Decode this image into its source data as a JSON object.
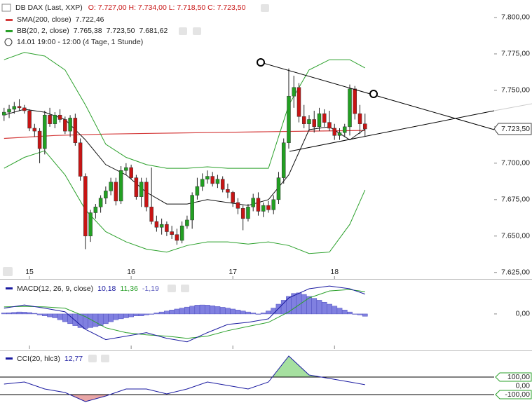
{
  "chart_data": [
    {
      "type": "candlestick",
      "title": "DB DAX (Last, XXP)",
      "ohlc_label": "O: 7.727,00  H: 7.734,00  L: 7.718,50  C: 7.723,50",
      "period": "14.01 19:00 - 12:00 (4 Tage, 1 Stunde)",
      "xlim": [
        -0.8,
        96.4
      ],
      "ylim": [
        7622,
        7812
      ],
      "xticks": [
        {
          "value": 5,
          "label": "15"
        },
        {
          "value": 25,
          "label": "16"
        },
        {
          "value": 45,
          "label": "17"
        },
        {
          "value": 65,
          "label": "18"
        }
      ],
      "yticks": [
        {
          "value": 7625,
          "label": "7.625,00"
        },
        {
          "value": 7650,
          "label": "7.650,00"
        },
        {
          "value": 7675,
          "label": "7.675,00"
        },
        {
          "value": 7700,
          "label": "7.700,00"
        },
        {
          "value": 7725,
          "label": "7.725,00"
        },
        {
          "value": 7750,
          "label": "7.750,00"
        },
        {
          "value": 7775,
          "label": "7.775,00"
        },
        {
          "value": 7800,
          "label": "7.800,00"
        }
      ],
      "up_color": "#22a022",
      "down_color": "#c81414",
      "x": [
        0,
        1,
        2,
        3,
        4,
        5,
        6,
        7,
        8,
        9,
        10,
        11,
        12,
        13,
        14,
        15,
        16,
        17,
        18,
        19,
        20,
        21,
        22,
        23,
        24,
        25,
        26,
        27,
        28,
        29,
        30,
        31,
        32,
        33,
        34,
        35,
        36,
        37,
        38,
        39,
        40,
        41,
        42,
        43,
        44,
        45,
        46,
        47,
        48,
        49,
        50,
        51,
        52,
        53,
        54,
        55,
        56,
        57,
        58,
        59,
        60,
        61,
        62,
        63,
        64,
        65,
        66,
        67,
        68,
        69,
        70,
        71
      ],
      "ohlc": [
        [
          7733,
          7738,
          7729,
          7735
        ],
        [
          7735,
          7740,
          7731,
          7737
        ],
        [
          7737,
          7742,
          7734,
          7739
        ],
        [
          7739,
          7744,
          7736,
          7738
        ],
        [
          7738,
          7740,
          7734,
          7736
        ],
        [
          7736,
          7737,
          7722,
          7724
        ],
        [
          7724,
          7727,
          7718,
          7722
        ],
        [
          7722,
          7724,
          7700,
          7710
        ],
        [
          7710,
          7736,
          7706,
          7733
        ],
        [
          7733,
          7738,
          7725,
          7727
        ],
        [
          7727,
          7735,
          7724,
          7733
        ],
        [
          7733,
          7737,
          7728,
          7730
        ],
        [
          7730,
          7732,
          7720,
          7722
        ],
        [
          7722,
          7733,
          7718,
          7731
        ],
        [
          7731,
          7734,
          7712,
          7714
        ],
        [
          7714,
          7717,
          7688,
          7691
        ],
        [
          7691,
          7693,
          7641,
          7650
        ],
        [
          7650,
          7668,
          7646,
          7666
        ],
        [
          7666,
          7672,
          7662,
          7670
        ],
        [
          7670,
          7678,
          7666,
          7676
        ],
        [
          7676,
          7684,
          7672,
          7681
        ],
        [
          7681,
          7690,
          7678,
          7687
        ],
        [
          7687,
          7690,
          7671,
          7674
        ],
        [
          7674,
          7698,
          7672,
          7695
        ],
        [
          7695,
          7700,
          7692,
          7697
        ],
        [
          7697,
          7699,
          7689,
          7690
        ],
        [
          7690,
          7692,
          7675,
          7677
        ],
        [
          7677,
          7690,
          7670,
          7687
        ],
        [
          7687,
          7690,
          7667,
          7670
        ],
        [
          7670,
          7697,
          7658,
          7660
        ],
        [
          7660,
          7664,
          7653,
          7656
        ],
        [
          7656,
          7662,
          7651,
          7658
        ],
        [
          7658,
          7660,
          7650,
          7653
        ],
        [
          7653,
          7657,
          7648,
          7651
        ],
        [
          7651,
          7655,
          7644,
          7647
        ],
        [
          7647,
          7660,
          7645,
          7657
        ],
        [
          7657,
          7664,
          7655,
          7661
        ],
        [
          7661,
          7680,
          7655,
          7678
        ],
        [
          7678,
          7690,
          7675,
          7684
        ],
        [
          7684,
          7693,
          7681,
          7689
        ],
        [
          7689,
          7695,
          7686,
          7691
        ],
        [
          7691,
          7694,
          7684,
          7686
        ],
        [
          7686,
          7692,
          7683,
          7689
        ],
        [
          7689,
          7691,
          7680,
          7682
        ],
        [
          7682,
          7686,
          7676,
          7680
        ],
        [
          7680,
          7681,
          7670,
          7673
        ],
        [
          7673,
          7676,
          7665,
          7669
        ],
        [
          7669,
          7671,
          7654,
          7662
        ],
        [
          7662,
          7672,
          7660,
          7670
        ],
        [
          7670,
          7679,
          7667,
          7676
        ],
        [
          7676,
          7680,
          7664,
          7667
        ],
        [
          7667,
          7673,
          7663,
          7671
        ],
        [
          7671,
          7674,
          7666,
          7668
        ],
        [
          7668,
          7678,
          7665,
          7675
        ],
        [
          7675,
          7694,
          7672,
          7690
        ],
        [
          7690,
          7717,
          7686,
          7714
        ],
        [
          7714,
          7765,
          7710,
          7746
        ],
        [
          7746,
          7760,
          7738,
          7752
        ],
        [
          7752,
          7755,
          7728,
          7732
        ],
        [
          7732,
          7740,
          7724,
          7727
        ],
        [
          7727,
          7733,
          7722,
          7730
        ],
        [
          7730,
          7736,
          7721,
          7725
        ],
        [
          7725,
          7738,
          7722,
          7734
        ],
        [
          7734,
          7737,
          7725,
          7728
        ],
        [
          7728,
          7736,
          7722,
          7724
        ],
        [
          7724,
          7727,
          7716,
          7719
        ],
        [
          7719,
          7724,
          7716,
          7721
        ],
        [
          7721,
          7727,
          7718,
          7725
        ],
        [
          7725,
          7754,
          7719,
          7751
        ],
        [
          7751,
          7753,
          7730,
          7734
        ],
        [
          7734,
          7740,
          7720,
          7727
        ],
        [
          7727,
          7734,
          7718.5,
          7723.5
        ]
      ],
      "last_price": {
        "value": 7723.5,
        "label": "7.723,50"
      },
      "sma": {
        "name": "SMA(200, close)",
        "value_label": "7.722,46",
        "color": "#d43a3a",
        "x": [
          0,
          10,
          20,
          30,
          40,
          50,
          60,
          71
        ],
        "values": [
          7717,
          7719,
          7720,
          7720.5,
          7721,
          7721.5,
          7722,
          7722.46
        ]
      },
      "bb": {
        "name": "BB(20, 2, close)",
        "value_labels": [
          "7.765,38",
          "7.723,50",
          "7.681,62"
        ],
        "color": "#2aa02a",
        "middle_color": "#111111",
        "x": [
          0,
          4,
          8,
          12,
          16,
          20,
          24,
          28,
          32,
          36,
          40,
          44,
          48,
          52,
          56,
          60,
          64,
          68,
          71
        ],
        "upper": [
          7771,
          7776,
          7773.5,
          7764,
          7740,
          7713,
          7704,
          7699,
          7696.5,
          7696.5,
          7697.5,
          7696.5,
          7696.5,
          7696.5,
          7740,
          7764,
          7771,
          7771,
          7765.38
        ],
        "middle": [
          7733,
          7737,
          7735,
          7730,
          7716,
          7699,
          7692,
          7680,
          7672,
          7672,
          7675,
          7673,
          7671,
          7675,
          7692,
          7723,
          7725,
          7716,
          7723.5
        ],
        "lower": [
          7696.5,
          7704,
          7708.5,
          7692,
          7668,
          7653,
          7646,
          7641,
          7639,
          7643.5,
          7646,
          7646,
          7644.5,
          7646,
          7643.5,
          7638,
          7639,
          7658,
          7681.62
        ]
      }
    },
    {
      "type": "macd",
      "title": "MACD(12, 26, 9, close)",
      "value_labels": [
        "10,18",
        "11,36",
        "-1,19"
      ],
      "ylim": [
        -18,
        16.5
      ],
      "yticks": [
        {
          "value": 0,
          "label": "0,00"
        }
      ],
      "macd": {
        "color": "#1a1aa0",
        "x": [
          0,
          4,
          8,
          12,
          16,
          20,
          24,
          28,
          32,
          36,
          40,
          44,
          48,
          52,
          56,
          60,
          64,
          68,
          71
        ],
        "values": [
          2.9,
          4.6,
          2.9,
          1.1,
          -7.9,
          -13.2,
          -11.4,
          -9.6,
          -12.5,
          -14.3,
          -9.6,
          -5.4,
          -4.3,
          -2.5,
          8.2,
          12.9,
          14.3,
          12.9,
          10.18
        ]
      },
      "signal": {
        "color": "#2aa02a",
        "x": [
          0,
          4,
          8,
          12,
          16,
          20,
          24,
          28,
          32,
          36,
          40,
          44,
          48,
          52,
          56,
          60,
          64,
          68,
          71
        ],
        "values": [
          3.6,
          3.9,
          3.6,
          2.9,
          -1.4,
          -7.1,
          -9.6,
          -10.7,
          -11.4,
          -12.5,
          -11.4,
          -8.6,
          -6.4,
          -4.3,
          1.1,
          8.2,
          11.8,
          12.5,
          11.36
        ]
      },
      "histogram": {
        "color": "#8080e0",
        "x": [
          0,
          1,
          2,
          3,
          4,
          5,
          6,
          7,
          8,
          9,
          10,
          11,
          12,
          13,
          14,
          15,
          16,
          17,
          18,
          19,
          20,
          21,
          22,
          23,
          24,
          25,
          26,
          27,
          28,
          29,
          30,
          31,
          32,
          33,
          34,
          35,
          36,
          37,
          38,
          39,
          40,
          41,
          42,
          43,
          44,
          45,
          46,
          47,
          48,
          49,
          50,
          51,
          52,
          53,
          54,
          55,
          56,
          57,
          58,
          59,
          60,
          61,
          62,
          63,
          64,
          65,
          66,
          67,
          68,
          69,
          70,
          71
        ],
        "values": [
          0.5,
          0.6,
          0.8,
          1,
          0.9,
          0.7,
          0.3,
          -0.5,
          -1,
          -1.5,
          -2,
          -3,
          -4,
          -5,
          -6,
          -7,
          -7.5,
          -7,
          -6.5,
          -6,
          -5,
          -4,
          -3,
          -2.5,
          -2,
          -1.5,
          -1,
          -1,
          -0.5,
          0,
          0.5,
          1,
          1.5,
          2,
          2.5,
          3,
          3.5,
          4,
          4.5,
          4.6,
          4.5,
          4.2,
          3.8,
          3.4,
          3,
          2.5,
          2,
          1.5,
          1,
          0.5,
          0,
          0.5,
          1.5,
          3,
          5,
          7,
          9,
          10.5,
          10.8,
          10,
          9,
          8,
          7,
          6,
          5,
          4,
          3,
          2,
          1,
          0,
          -0.5,
          -1.19
        ]
      }
    },
    {
      "type": "cci",
      "title": "CCI(20, hlc3)",
      "value_label": "12,77",
      "ylim": [
        -196,
        380
      ],
      "yticks": [
        {
          "value": 100,
          "label": "100,00"
        },
        {
          "value": 0,
          "label": "0,00"
        },
        {
          "value": -100,
          "label": "-100,00"
        }
      ],
      "color": "#1a1aa0",
      "upper_fill": "#a6e0a0",
      "lower_fill": "#e8a6a6",
      "x": [
        0,
        4,
        8,
        12,
        16,
        20,
        24,
        28,
        32,
        36,
        40,
        44,
        48,
        52,
        56,
        60,
        64,
        68,
        71
      ],
      "values": [
        20,
        44,
        -36,
        -76,
        -180,
        -116,
        -36,
        -36,
        -92,
        -36,
        44,
        4,
        -36,
        44,
        340,
        124,
        84,
        44,
        12.77
      ]
    }
  ]
}
